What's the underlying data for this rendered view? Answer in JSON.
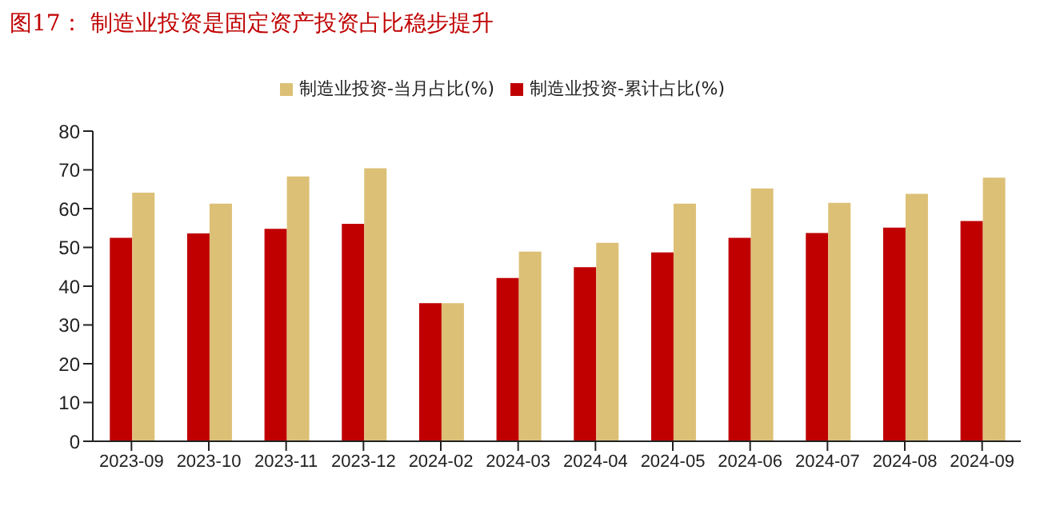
{
  "chart_data": {
    "type": "bar",
    "title": "图17：  制造业投资是固定资产投资占比稳步提升",
    "categories": [
      "2023-09",
      "2023-10",
      "2023-11",
      "2023-12",
      "2024-02",
      "2024-03",
      "2024-04",
      "2024-05",
      "2024-06",
      "2024-07",
      "2024-08",
      "2024-09"
    ],
    "series": [
      {
        "name": "制造业投资-累计占比(%)",
        "color": "#c00000",
        "values": [
          52.5,
          53.6,
          54.8,
          56.1,
          35.6,
          42.1,
          44.9,
          48.7,
          52.5,
          53.7,
          55.1,
          56.8
        ]
      },
      {
        "name": "制造业投资-当月占比(%)",
        "color": "#dcc076",
        "values": [
          64.1,
          61.3,
          68.3,
          70.4,
          35.6,
          48.9,
          51.2,
          61.3,
          65.2,
          61.5,
          63.8,
          68.0
        ]
      }
    ],
    "ylim": [
      0,
      80
    ],
    "yticks": [
      0,
      10,
      20,
      30,
      40,
      50,
      60,
      70,
      80
    ],
    "grid": false,
    "legend": "top"
  }
}
